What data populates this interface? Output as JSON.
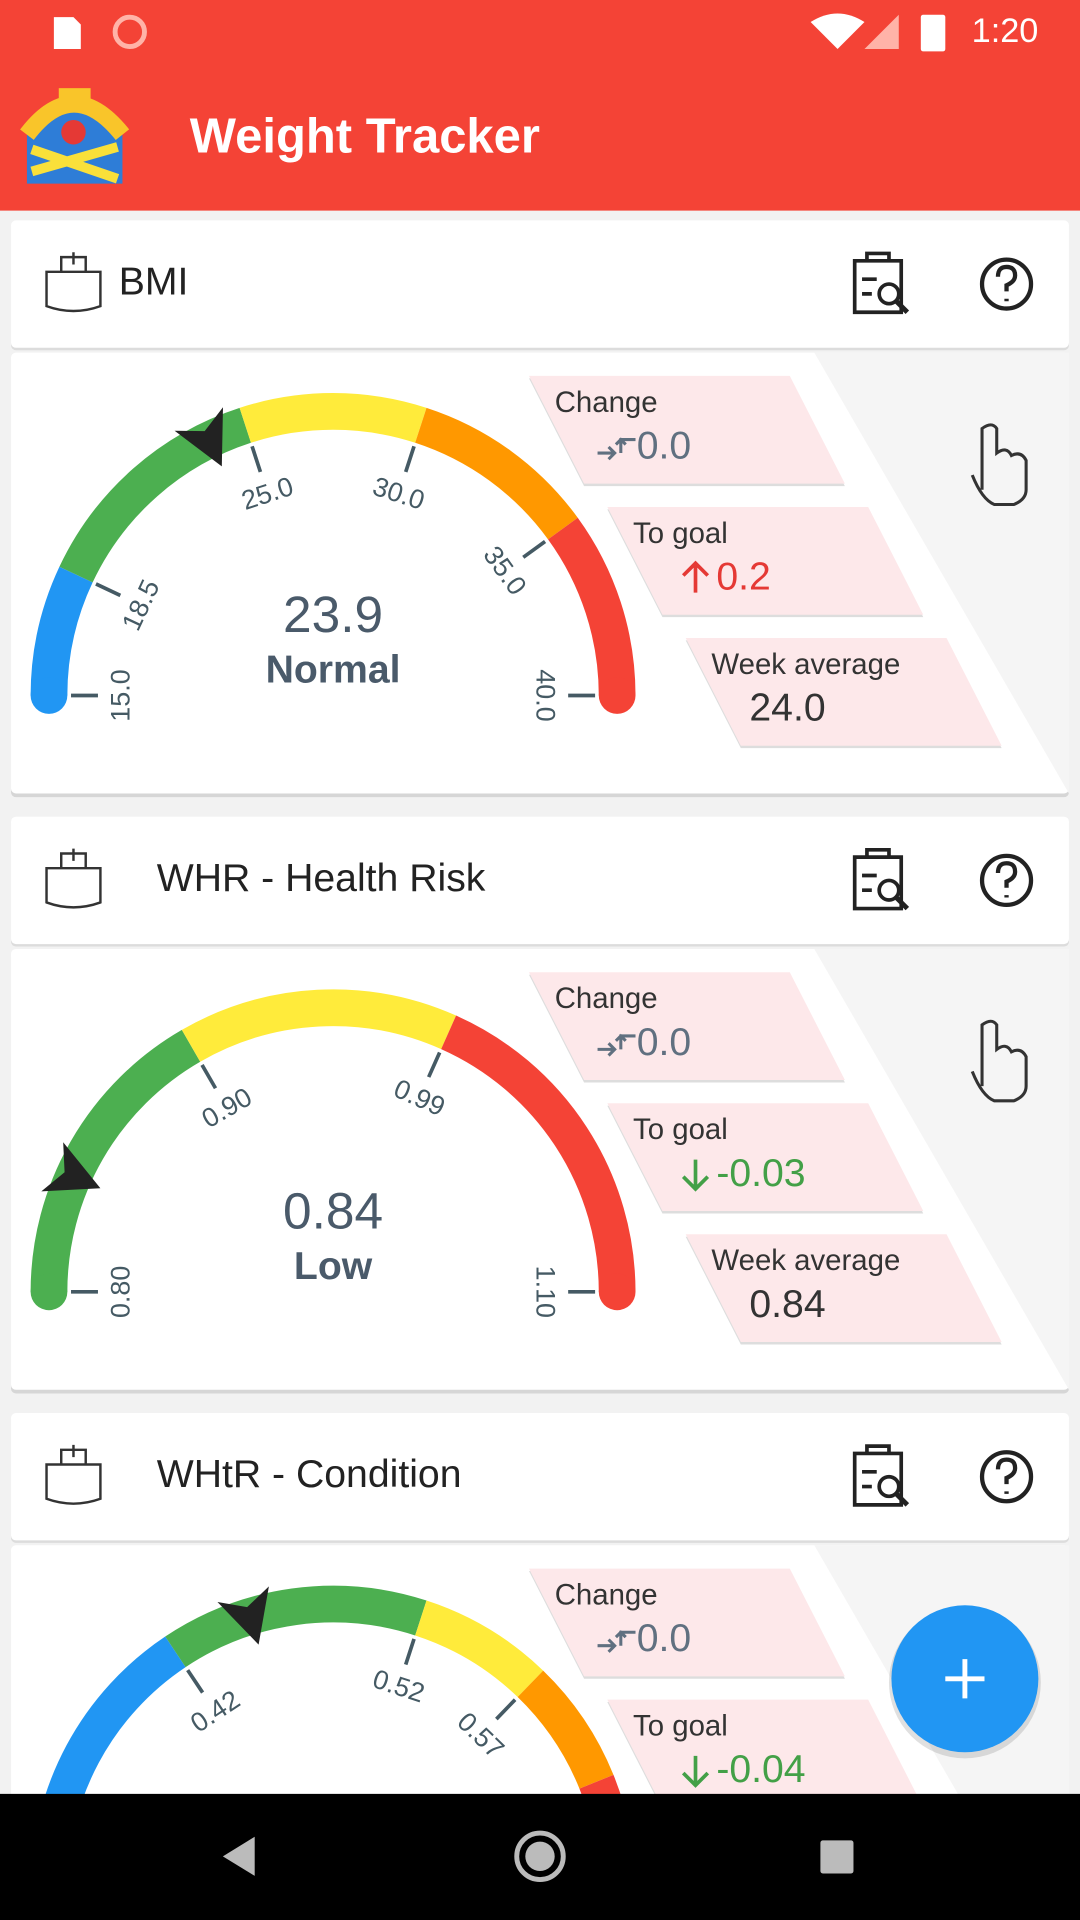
{
  "status_bar": {
    "time": "1:20"
  },
  "app_bar": {
    "title": "Weight Tracker"
  },
  "cards": [
    {
      "title": "BMI",
      "gauge": {
        "ticks": [
          "15.0",
          "18.5",
          "25.0",
          "30.0",
          "35.0",
          "40.0"
        ],
        "value": "23.9",
        "category": "Normal"
      },
      "stats": [
        {
          "label": "Change",
          "value": "0.0"
        },
        {
          "label": "To goal",
          "value": "0.2"
        },
        {
          "label": "Week average",
          "value": "24.0"
        }
      ]
    },
    {
      "title": "WHR - Health Risk",
      "gauge": {
        "ticks": [
          "0.80",
          "0.90",
          "0.99",
          "1.10"
        ],
        "value": "0.84",
        "category": "Low"
      },
      "stats": [
        {
          "label": "Change",
          "value": "0.0"
        },
        {
          "label": "To goal",
          "value": "-0.03"
        },
        {
          "label": "Week average",
          "value": "0.84"
        }
      ]
    },
    {
      "title": "WHtR - Condition",
      "gauge": {
        "ticks": [
          "0.42",
          "0.52",
          "0.57"
        ]
      },
      "stats": [
        {
          "label": "Change",
          "value": "0.0"
        },
        {
          "label": "To goal",
          "value": "-0.04"
        }
      ]
    }
  ]
}
